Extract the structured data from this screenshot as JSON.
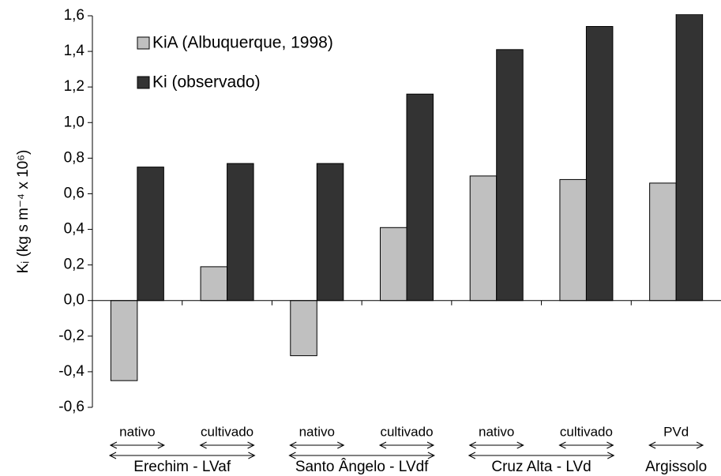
{
  "chart_data": {
    "type": "bar",
    "y_label": "Kᵢ (kg s m⁻⁴ x 10⁶)",
    "categories": [
      "nativo",
      "cultivado",
      "nativo",
      "cultivado",
      "nativo",
      "cultivado",
      "PVd"
    ],
    "groups": [
      "Erechim - LVaf",
      "Santo Ângelo - LVdf",
      "Cruz Alta - LVd",
      "Argissolo"
    ],
    "series": [
      {
        "name": "KiA (Albuquerque, 1998)",
        "color": "#c0c0c0",
        "values": [
          -0.45,
          0.19,
          -0.31,
          0.41,
          0.7,
          0.68,
          0.66
        ]
      },
      {
        "name": "Ki (observado)",
        "color": "#333333",
        "values": [
          0.75,
          0.77,
          0.77,
          1.16,
          1.41,
          1.54,
          1.61
        ]
      }
    ],
    "ylim": [
      -0.6,
      1.6
    ],
    "yticks": [
      {
        "value": -0.6,
        "label": "-0,6"
      },
      {
        "value": -0.4,
        "label": "-0,4"
      },
      {
        "value": -0.2,
        "label": "-0,2"
      },
      {
        "value": 0,
        "label": "0,0"
      },
      {
        "value": 0.2,
        "label": "0,2"
      },
      {
        "value": 0.4,
        "label": "0,4"
      },
      {
        "value": 0.6,
        "label": "0,6"
      },
      {
        "value": 0.8,
        "label": "0,8"
      },
      {
        "value": 1.0,
        "label": "1,0"
      },
      {
        "value": 1.2,
        "label": "1,2"
      },
      {
        "value": 1.4,
        "label": "1,4"
      },
      {
        "value": 1.6,
        "label": "1,6"
      }
    ],
    "legend": "top-left",
    "grid": false
  }
}
